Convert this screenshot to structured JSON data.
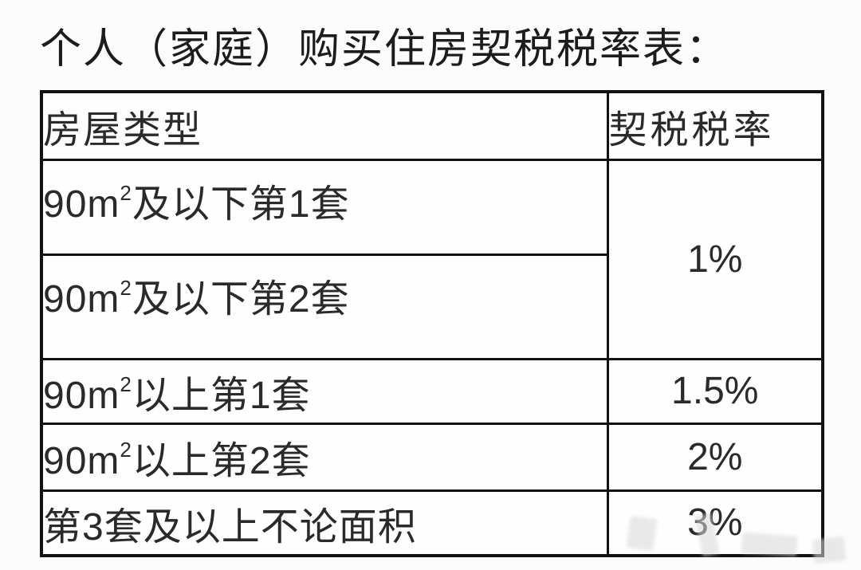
{
  "page": {
    "title": "个人（家庭）购买住房契税税率表："
  },
  "table": {
    "headers": {
      "house_type": "房屋类型",
      "tax_rate": "契税税率"
    },
    "rows": [
      {
        "label_prefix": "90m",
        "label_sup": "2",
        "label_suffix": "及以下第1套",
        "rate": "1%"
      },
      {
        "label_prefix": "90m",
        "label_sup": "2",
        "label_suffix": "及以下第2套",
        "rate": "1%"
      },
      {
        "label_prefix": "90m",
        "label_sup": "2",
        "label_suffix": "以上第1套",
        "rate": "1.5%"
      },
      {
        "label_prefix": "90m",
        "label_sup": "2",
        "label_suffix": "以上第2套",
        "rate": "2%"
      },
      {
        "label_prefix": "第3套及以上不论面积",
        "label_sup": "",
        "label_suffix": "",
        "rate": "3%"
      }
    ],
    "merged_rate_note": "rows 0-1 share one merged rate cell of 1%"
  },
  "colors": {
    "text": "#2a2a2a",
    "border": "#121212",
    "background": "#fcfcfc"
  }
}
